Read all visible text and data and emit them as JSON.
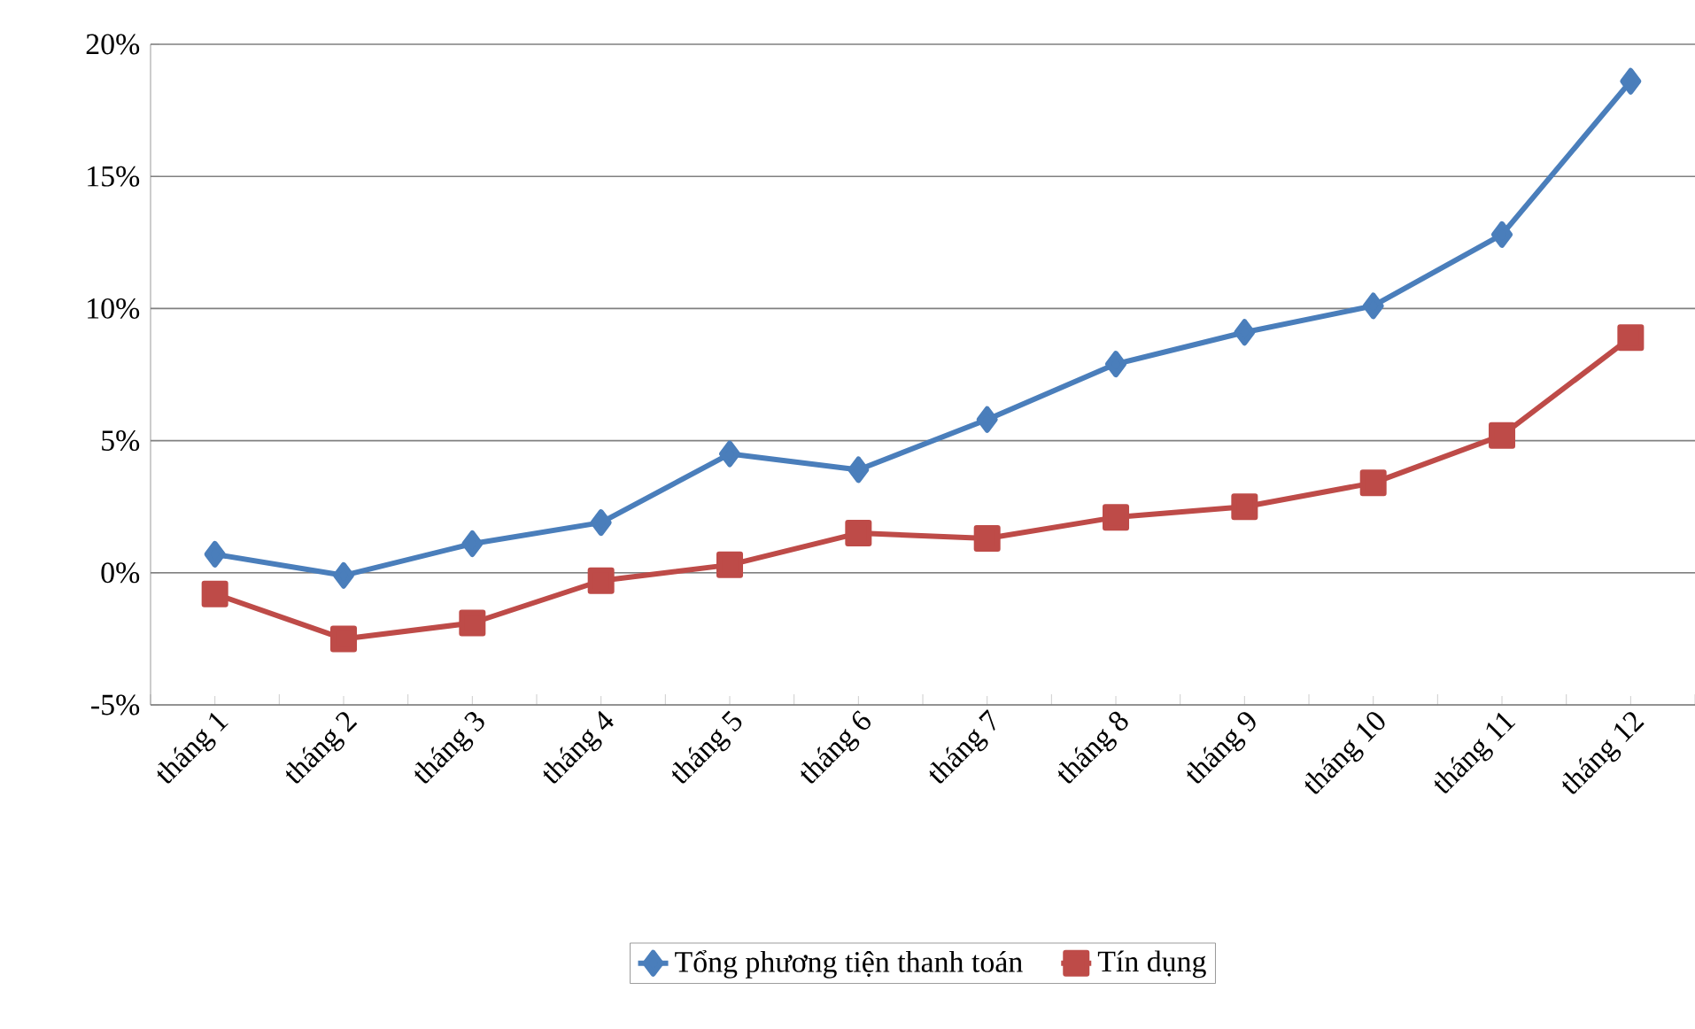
{
  "chart_data": {
    "type": "line",
    "categories": [
      "tháng 1",
      "tháng 2",
      "tháng 3",
      "tháng 4",
      "tháng 5",
      "tháng 6",
      "tháng 7",
      "tháng 8",
      "tháng 9",
      "tháng 10",
      "tháng 11",
      "tháng 12"
    ],
    "series": [
      {
        "name": "Tổng phương tiện thanh toán",
        "color": "#4a7ebb",
        "marker": "diamond",
        "values": [
          0.7,
          -0.1,
          1.1,
          1.9,
          4.5,
          3.9,
          5.8,
          7.9,
          9.1,
          10.1,
          12.8,
          18.6
        ]
      },
      {
        "name": "Tín dụng",
        "color": "#be4b48",
        "marker": "square",
        "values": [
          -0.8,
          -2.5,
          -1.9,
          -0.3,
          0.3,
          1.5,
          1.3,
          2.1,
          2.5,
          3.4,
          5.2,
          8.9
        ]
      }
    ],
    "ylim": [
      -5,
      20
    ],
    "yticks": [
      {
        "value": -5,
        "label": "-5%"
      },
      {
        "value": 0,
        "label": "0%"
      },
      {
        "value": 5,
        "label": "5%"
      },
      {
        "value": 10,
        "label": "10%"
      },
      {
        "value": 15,
        "label": "15%"
      },
      {
        "value": 20,
        "label": "20%"
      }
    ],
    "grid": "y",
    "legend": "bottom"
  }
}
